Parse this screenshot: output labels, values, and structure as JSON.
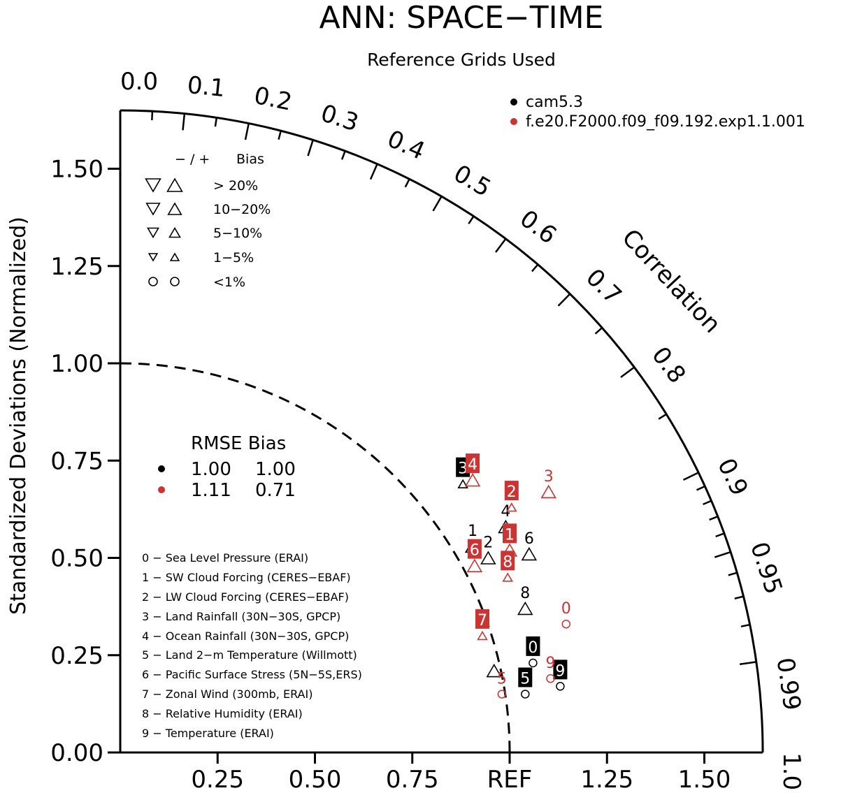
{
  "chart_data": {
    "type": "taylor",
    "title": "ANN: SPACE−TIME",
    "subtitle": "Reference Grids Used",
    "ylabel": "Standardized Deviations (Normalized)",
    "corr_axis_label": "Correlation",
    "std_max": 1.65,
    "y_ticks": [
      "0.00",
      "0.25",
      "0.50",
      "0.75",
      "1.00",
      "1.25",
      "1.50"
    ],
    "y_tick_values": [
      0,
      0.25,
      0.5,
      0.75,
      1.0,
      1.25,
      1.5
    ],
    "x_ticks": [
      "0.25",
      "0.50",
      "0.75",
      "REF",
      "1.25",
      "1.50"
    ],
    "x_tick_values": [
      0.25,
      0.5,
      0.75,
      1.0,
      1.25,
      1.5
    ],
    "corr_labels": [
      "0.0",
      "0.1",
      "0.2",
      "0.3",
      "0.4",
      "0.5",
      "0.6",
      "0.7",
      "0.8",
      "0.9",
      "0.95",
      "0.99",
      "1.0"
    ],
    "corr_label_values": [
      0,
      0.1,
      0.2,
      0.3,
      0.4,
      0.5,
      0.6,
      0.7,
      0.8,
      0.9,
      0.95,
      0.99,
      1.0
    ],
    "corr_minor_ticks": [
      0.05,
      0.15,
      0.25,
      0.35,
      0.45,
      0.55,
      0.65,
      0.75,
      0.85,
      0.91,
      0.92,
      0.93,
      0.94,
      0.96,
      0.97,
      0.98
    ],
    "ref_arc_radius": 1.0,
    "models": [
      {
        "name": "cam5.3",
        "color": "#000000",
        "rmse": "1.00",
        "bias": "1.00"
      },
      {
        "name": "f.e20.F2000.f09_f09.192.exp1.1.001",
        "color": "#cc3333",
        "rmse": "1.11",
        "bias": "0.71"
      }
    ],
    "stat_header": "RMSE Bias",
    "bias_legend": {
      "header_sign": "−  /  +",
      "header_bias": "Bias",
      "rows": [
        "> 20%",
        "10−20%",
        "5−10%",
        "1−5%",
        "<1%"
      ]
    },
    "variables": [
      "0 − Sea Level Pressure (ERAI)",
      "1 − SW Cloud Forcing (CERES−EBAF)",
      "2 − LW Cloud Forcing (CERES−EBAF)",
      "3 − Land Rainfall (30N−30S, GPCP)",
      "4 − Ocean Rainfall (30N−30S, GPCP)",
      "5 − Land 2−m Temperature (Willmott)",
      "6 − Pacific Surface Stress (5N−5S,ERS)",
      "7 − Zonal Wind (300mb, ERAI)",
      "8 − Relative Humidity (ERAI)",
      "9 − Temperature (ERAI)"
    ],
    "points": [
      {
        "model": 0,
        "id": "0",
        "x": 1.06,
        "y": 0.23,
        "sym": "circle",
        "lab": "box"
      },
      {
        "model": 0,
        "id": "1",
        "x": 0.905,
        "y": 0.53,
        "sym": "up",
        "lab": "plain"
      },
      {
        "model": 0,
        "id": "2",
        "x": 0.945,
        "y": 0.5,
        "sym": "up",
        "lab": "plain"
      },
      {
        "model": 0,
        "id": "3",
        "x": 0.88,
        "y": 0.69,
        "sym": "up-s",
        "lab": "box"
      },
      {
        "model": 0,
        "id": "4",
        "x": 0.99,
        "y": 0.58,
        "sym": "up",
        "lab": "plain"
      },
      {
        "model": 0,
        "id": "5",
        "x": 1.04,
        "y": 0.15,
        "sym": "circle",
        "lab": "box"
      },
      {
        "model": 0,
        "id": "6",
        "x": 1.05,
        "y": 0.51,
        "sym": "up",
        "lab": "plain"
      },
      {
        "model": 0,
        "id": "7",
        "x": 0.96,
        "y": 0.21,
        "sym": "up",
        "lab": "none"
      },
      {
        "model": 0,
        "id": "8",
        "x": 1.04,
        "y": 0.37,
        "sym": "up",
        "lab": "plain"
      },
      {
        "model": 0,
        "id": "9",
        "x": 1.13,
        "y": 0.17,
        "sym": "circle",
        "lab": "box"
      },
      {
        "model": 1,
        "id": "0",
        "x": 1.145,
        "y": 0.33,
        "sym": "circle",
        "lab": "plain"
      },
      {
        "model": 1,
        "id": "1",
        "x": 1.0,
        "y": 0.52,
        "sym": "up",
        "lab": "box"
      },
      {
        "model": 1,
        "id": "2",
        "x": 1.005,
        "y": 0.63,
        "sym": "up-s",
        "lab": "box"
      },
      {
        "model": 1,
        "id": "3",
        "x": 1.1,
        "y": 0.67,
        "sym": "up",
        "lab": "plain"
      },
      {
        "model": 1,
        "id": "4",
        "x": 0.905,
        "y": 0.7,
        "sym": "up",
        "lab": "box"
      },
      {
        "model": 1,
        "id": "5",
        "x": 0.98,
        "y": 0.15,
        "sym": "circle",
        "lab": "plain"
      },
      {
        "model": 1,
        "id": "6",
        "x": 0.91,
        "y": 0.48,
        "sym": "up",
        "lab": "box"
      },
      {
        "model": 1,
        "id": "7",
        "x": 0.93,
        "y": 0.3,
        "sym": "up-s",
        "lab": "box"
      },
      {
        "model": 1,
        "id": "8",
        "x": 0.995,
        "y": 0.45,
        "sym": "up-s",
        "lab": "box"
      },
      {
        "model": 1,
        "id": "9",
        "x": 1.105,
        "y": 0.19,
        "sym": "circle",
        "lab": "plain"
      }
    ]
  }
}
